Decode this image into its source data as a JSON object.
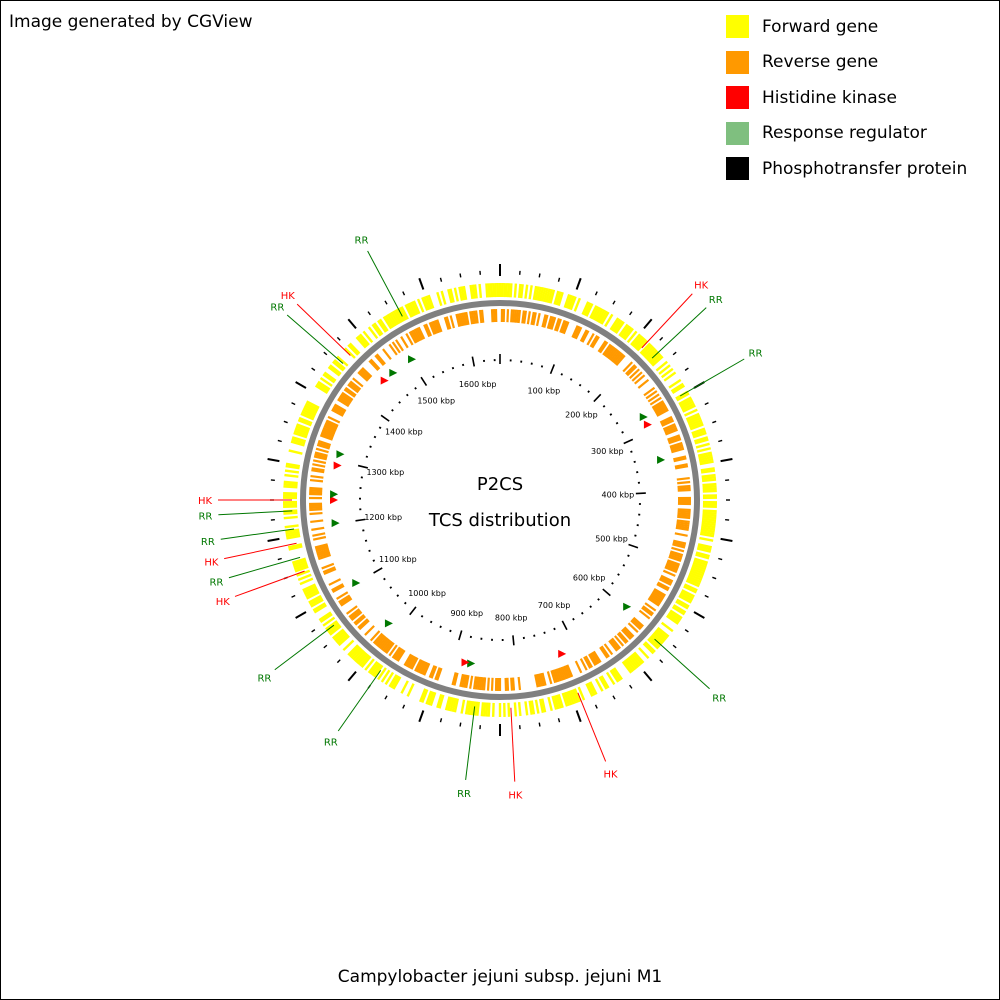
{
  "credit": "Image generated by CGView",
  "footer": "Campylobacter jejuni subsp. jejuni M1",
  "center": {
    "line1": "P2CS",
    "line2": "TCS distribution"
  },
  "legend": [
    {
      "label": "Forward gene",
      "color": "#ffff00"
    },
    {
      "label": "Reverse gene",
      "color": "#ff9900"
    },
    {
      "label": "Histidine kinase",
      "color": "#ff0000"
    },
    {
      "label": "Response regulator",
      "color": "#7fbf7f"
    },
    {
      "label": "Phosphotransfer protein",
      "color": "#000000"
    }
  ],
  "map": {
    "backbone_color": "#808080",
    "tcs_line_colors": {
      "HK": "#ff0000",
      "RR": "#007700"
    },
    "tcs_arrow_colors": {
      "HK": "#ff0000",
      "RR": "#007700"
    },
    "kbp_labels": [
      {
        "kbp": 100,
        "text": "100 kbp"
      },
      {
        "kbp": 200,
        "text": "200 kbp"
      },
      {
        "kbp": 300,
        "text": "300 kbp"
      },
      {
        "kbp": 400,
        "text": "400 kbp"
      },
      {
        "kbp": 500,
        "text": "500 kbp"
      },
      {
        "kbp": 600,
        "text": "600 kbp"
      },
      {
        "kbp": 700,
        "text": "700 kbp"
      },
      {
        "kbp": 800,
        "text": "800 kbp"
      },
      {
        "kbp": 900,
        "text": "900 kbp"
      },
      {
        "kbp": 1000,
        "text": "1000 kbp"
      },
      {
        "kbp": 1100,
        "text": "1100 kbp"
      },
      {
        "kbp": 1200,
        "text": "1200 kbp"
      },
      {
        "kbp": 1300,
        "text": "1300 kbp"
      },
      {
        "kbp": 1400,
        "text": "1400 kbp"
      },
      {
        "kbp": 1500,
        "text": "1500 kbp"
      },
      {
        "kbp": 1600,
        "text": "1600 kbp"
      }
    ],
    "tcs_labels": [
      {
        "type": "RR",
        "text": "RR",
        "angle": -28
      },
      {
        "type": "HK",
        "text": "HK",
        "angle": -46
      },
      {
        "type": "RR",
        "text": "RR",
        "angle": -49
      },
      {
        "type": "HK",
        "text": "HK",
        "angle": 43
      },
      {
        "type": "RR",
        "text": "RR",
        "angle": 47
      },
      {
        "type": "RR",
        "text": "RR",
        "angle": 60
      },
      {
        "type": "HK",
        "text": "HK",
        "angle": -90
      },
      {
        "type": "RR",
        "text": "RR",
        "angle": -93
      },
      {
        "type": "RR",
        "text": "RR",
        "angle": -98
      },
      {
        "type": "HK",
        "text": "HK",
        "angle": -102
      },
      {
        "type": "RR",
        "text": "RR",
        "angle": -106
      },
      {
        "type": "HK",
        "text": "HK",
        "angle": -110
      },
      {
        "type": "RR",
        "text": "RR",
        "angle": -127
      },
      {
        "type": "RR",
        "text": "RR",
        "angle": -145
      },
      {
        "type": "RR",
        "text": "RR",
        "angle": -173
      },
      {
        "type": "HK",
        "text": "HK",
        "angle": 177
      },
      {
        "type": "HK",
        "text": "HK",
        "angle": 158
      },
      {
        "type": "RR",
        "text": "RR",
        "angle": 132
      }
    ],
    "tcs_markers": [
      {
        "type": "RR",
        "angle": -32
      },
      {
        "type": "HK",
        "angle": -44
      },
      {
        "type": "RR",
        "angle": -40
      },
      {
        "type": "HK",
        "angle": 63
      },
      {
        "type": "RR",
        "angle": 60
      },
      {
        "type": "RR",
        "angle": 76
      },
      {
        "type": "HK",
        "angle": -78
      },
      {
        "type": "RR",
        "angle": -74
      },
      {
        "type": "HK",
        "angle": -90
      },
      {
        "type": "RR",
        "angle": -88
      },
      {
        "type": "RR",
        "angle": -98
      },
      {
        "type": "RR",
        "angle": -120
      },
      {
        "type": "RR",
        "angle": -138
      },
      {
        "type": "RR",
        "angle": -170
      },
      {
        "type": "HK",
        "angle": -168
      },
      {
        "type": "HK",
        "angle": 158
      },
      {
        "type": "RR",
        "angle": 130
      }
    ]
  }
}
